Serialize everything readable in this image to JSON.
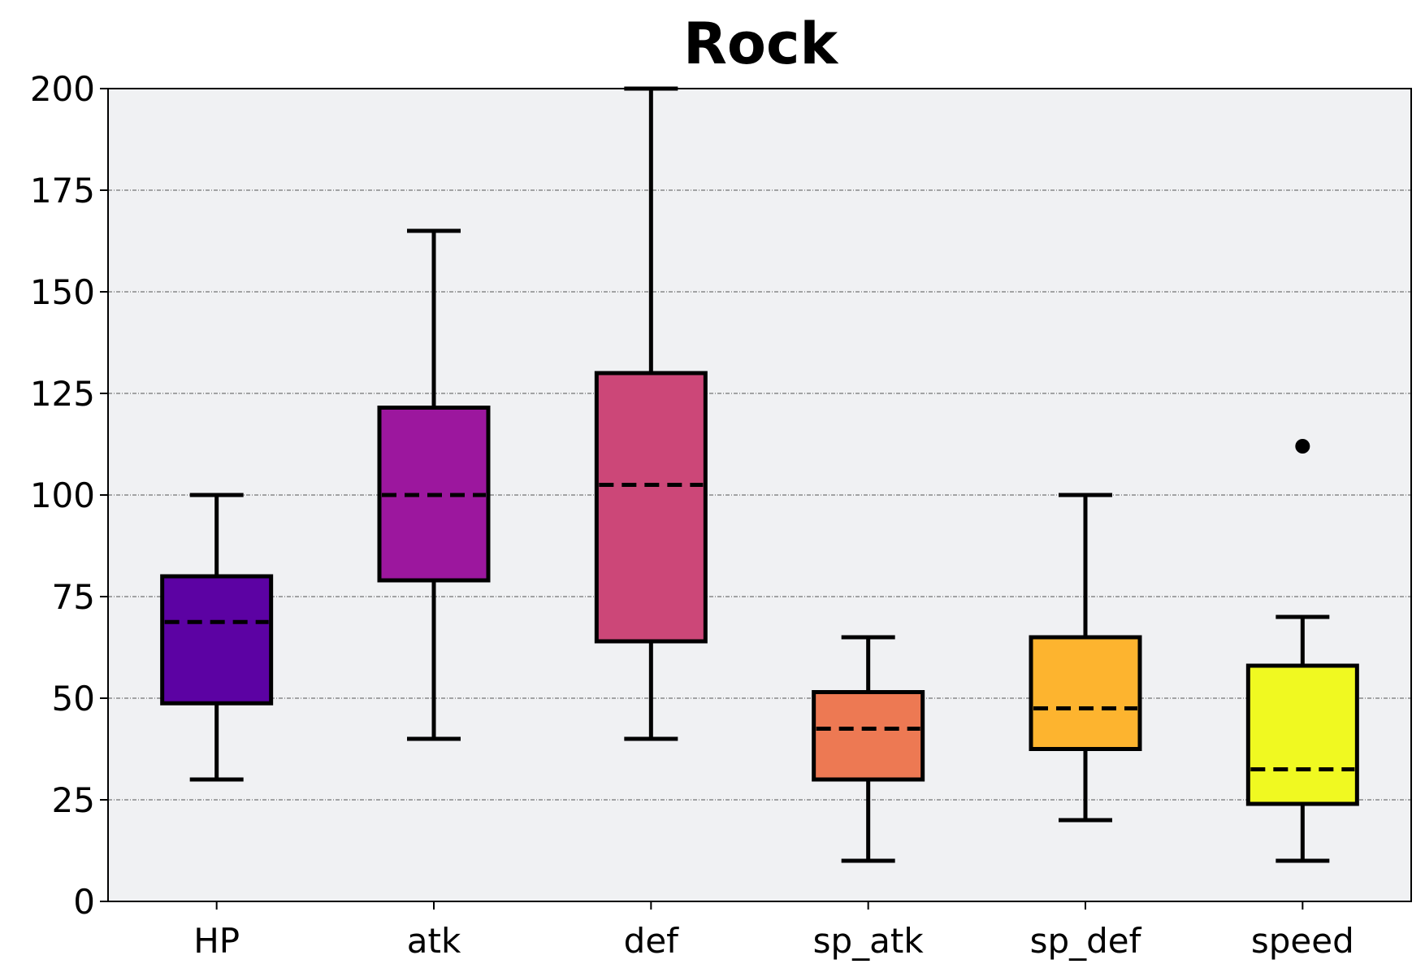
{
  "chart_data": {
    "type": "box",
    "title": "Rock",
    "xlabel": "",
    "ylabel": "",
    "ylim": [
      0,
      200
    ],
    "yticks": [
      0,
      25,
      50,
      75,
      100,
      125,
      150,
      175,
      200
    ],
    "grid": "horizontal dashed",
    "categories": [
      "HP",
      "atk",
      "def",
      "sp_atk",
      "sp_def",
      "speed"
    ],
    "boxes": [
      {
        "label": "HP",
        "min": 30,
        "q1": 48.75,
        "median": 68.75,
        "q3": 80,
        "max": 100,
        "outliers": [],
        "color": "#5c02a3"
      },
      {
        "label": "atk",
        "min": 40,
        "q1": 79,
        "median": 100,
        "q3": 121.5,
        "max": 165,
        "outliers": [],
        "color": "#9c179e"
      },
      {
        "label": "def",
        "min": 40,
        "q1": 64,
        "median": 102.5,
        "q3": 130,
        "max": 200,
        "outliers": [],
        "color": "#cc4778"
      },
      {
        "label": "sp_atk",
        "min": 10,
        "q1": 30,
        "median": 42.5,
        "q3": 51.5,
        "max": 65,
        "outliers": [],
        "color": "#ed7953"
      },
      {
        "label": "sp_def",
        "min": 20,
        "q1": 37.5,
        "median": 47.5,
        "q3": 65,
        "max": 100,
        "outliers": [],
        "color": "#fdb42f"
      },
      {
        "label": "speed",
        "min": 10,
        "q1": 24,
        "median": 32.5,
        "q3": 58,
        "max": 70,
        "outliers": [
          112
        ],
        "color": "#f0f921"
      }
    ],
    "plot_background": "#f0f1f3"
  }
}
